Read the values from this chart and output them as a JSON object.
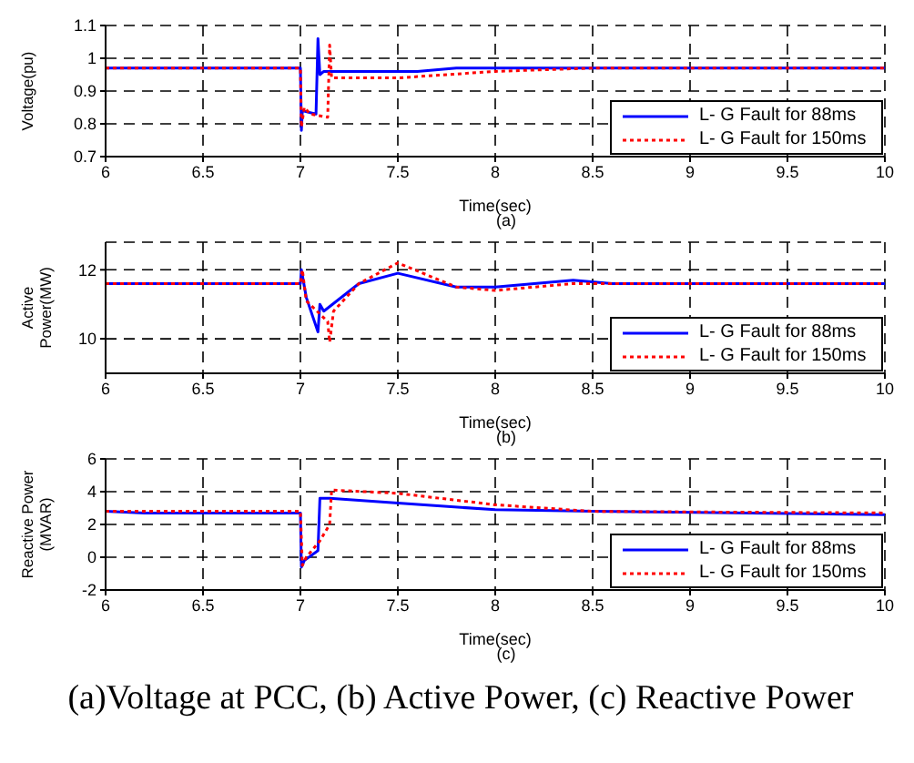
{
  "chart_data": [
    {
      "type": "line",
      "xlabel": "Time(sec)",
      "ylabel": "Voltage(pu)",
      "annotations": [
        "(a)"
      ],
      "xlim": [
        6,
        10
      ],
      "xticks": [
        6,
        6.5,
        7,
        7.5,
        8,
        8.5,
        9,
        9.5,
        10
      ],
      "ylim": [
        0.7,
        1.1
      ],
      "yticks": [
        0.7,
        0.8,
        0.9,
        1,
        1.1
      ],
      "grid": true,
      "legend": "bottom right",
      "series": [
        {
          "name": "L- G Fault for 88ms",
          "color": "#0000ff",
          "line_style": "solid",
          "x": [
            6,
            7,
            7.005,
            7.01,
            7.08,
            7.09,
            7.1,
            7.12,
            7.6,
            7.8,
            8.1,
            10
          ],
          "values": [
            0.97,
            0.97,
            0.78,
            0.84,
            0.83,
            1.06,
            0.95,
            0.96,
            0.96,
            0.97,
            0.97,
            0.97
          ]
        },
        {
          "name": "L- G Fault for 150ms",
          "color": "#ff0000",
          "line_style": "dotted",
          "x": [
            6,
            7,
            7.005,
            7.02,
            7.05,
            7.14,
            7.15,
            7.16,
            7.5,
            8,
            8.5,
            10
          ],
          "values": [
            0.97,
            0.97,
            0.79,
            0.85,
            0.83,
            0.82,
            1.04,
            0.94,
            0.94,
            0.96,
            0.97,
            0.97
          ]
        }
      ]
    },
    {
      "type": "line",
      "xlabel": "Time(sec)",
      "ylabel": "Active Power(MW)",
      "annotations": [
        "(b)"
      ],
      "xlim": [
        6,
        10
      ],
      "xticks": [
        6,
        6.5,
        7,
        7.5,
        8,
        8.5,
        9,
        9.5,
        10
      ],
      "ylim": [
        9,
        12.8
      ],
      "yticks": [
        10,
        12
      ],
      "grid": true,
      "legend": "bottom right",
      "series": [
        {
          "name": "L- G Fault for 88ms",
          "color": "#0000ff",
          "line_style": "solid",
          "x": [
            6,
            7,
            7.005,
            7.03,
            7.09,
            7.1,
            7.12,
            7.3,
            7.5,
            7.8,
            8,
            8.4,
            8.6,
            10
          ],
          "values": [
            11.6,
            11.6,
            12,
            11.2,
            10.2,
            11,
            10.8,
            11.6,
            11.9,
            11.5,
            11.5,
            11.7,
            11.6,
            11.6
          ]
        },
        {
          "name": "L- G Fault for 150ms",
          "color": "#ff0000",
          "line_style": "dotted",
          "x": [
            6,
            7,
            7.01,
            7.03,
            7.14,
            7.15,
            7.17,
            7.3,
            7.5,
            7.8,
            8,
            8.4,
            8.6,
            10
          ],
          "values": [
            11.6,
            11.6,
            12,
            11.1,
            10.5,
            9.9,
            10.8,
            11.6,
            12.2,
            11.5,
            11.4,
            11.6,
            11.6,
            11.6
          ]
        }
      ]
    },
    {
      "type": "line",
      "xlabel": "Time(sec)",
      "ylabel": "Reactive Power (MVAR)",
      "annotations": [
        "(c)",
        "(a)Voltage at PCC, (b) Active Power, (c) Reactive Power"
      ],
      "xlim": [
        6,
        10
      ],
      "xticks": [
        6,
        6.5,
        7,
        7.5,
        8,
        8.5,
        9,
        9.5,
        10
      ],
      "ylim": [
        -2,
        6
      ],
      "yticks": [
        -2,
        0,
        2,
        4,
        6
      ],
      "grid": true,
      "legend": "bottom right",
      "series": [
        {
          "name": "L- G Fault for 88ms",
          "color": "#0000ff",
          "line_style": "solid",
          "x": [
            6,
            6.2,
            7,
            7.005,
            7.02,
            7.09,
            7.1,
            7.15,
            7.5,
            8,
            8.5,
            10
          ],
          "values": [
            2.8,
            2.7,
            2.7,
            -0.6,
            -0.2,
            0.4,
            3.6,
            3.6,
            3.3,
            2.9,
            2.8,
            2.6
          ]
        },
        {
          "name": "L- G Fault for 150ms",
          "color": "#ff0000",
          "line_style": "dotted",
          "x": [
            6,
            7,
            7.01,
            7.03,
            7.1,
            7.15,
            7.16,
            7.5,
            8,
            8.5,
            10
          ],
          "values": [
            2.8,
            2.8,
            -0.5,
            0,
            1,
            2,
            4.1,
            3.9,
            3.2,
            2.8,
            2.7
          ]
        }
      ]
    }
  ]
}
